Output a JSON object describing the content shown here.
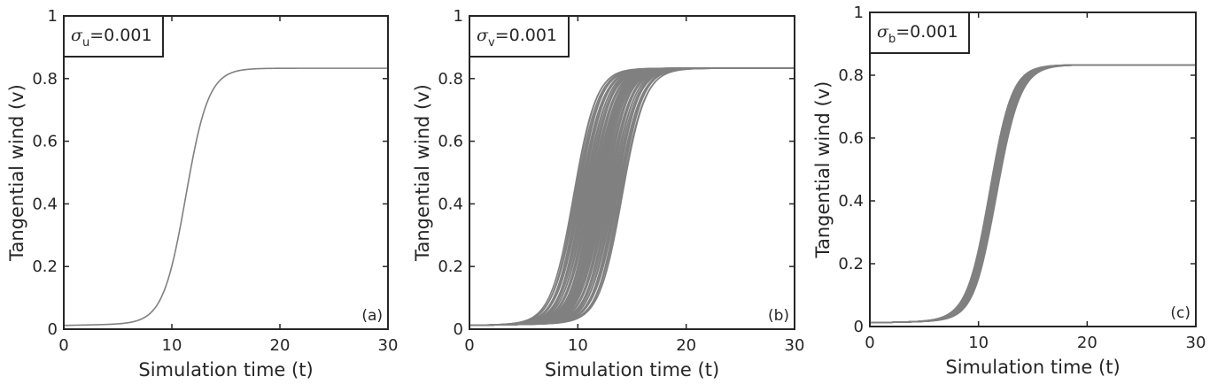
{
  "chart_data": [
    {
      "type": "line",
      "panel_tag": "(a)",
      "sigma_symbol": "σ",
      "sigma_subscript": "u",
      "sigma_value": "=0.001",
      "xlabel": "Simulation time (t)",
      "ylabel": "Tangential wind (v)",
      "xlim": [
        0,
        30
      ],
      "ylim": [
        0,
        1
      ],
      "xticks": [
        "0",
        "10",
        "20",
        "30"
      ],
      "yticks": [
        "0",
        "0.2",
        "0.4",
        "0.6",
        "0.8",
        "1"
      ],
      "line_color": "#808080",
      "ensemble": {
        "count": 1,
        "v_plateau": 0.833,
        "v_start": 0.012,
        "midpoint_range": [
          11.3,
          11.3
        ],
        "steepness": 0.95
      }
    },
    {
      "type": "line",
      "panel_tag": "(b)",
      "sigma_symbol": "σ",
      "sigma_subscript": "v",
      "sigma_value": "=0.001",
      "xlabel": "Simulation time (t)",
      "ylabel": "Tangential wind (v)",
      "xlim": [
        0,
        30
      ],
      "ylim": [
        0,
        1
      ],
      "xticks": [
        "0",
        "10",
        "20",
        "30"
      ],
      "yticks": [
        "0",
        "0.2",
        "0.4",
        "0.6",
        "0.8",
        "1"
      ],
      "line_color": "#808080",
      "ensemble": {
        "count": 60,
        "v_plateau": 0.833,
        "v_start": 0.012,
        "midpoint_range": [
          9.6,
          14.1
        ],
        "steepness": 0.95
      }
    },
    {
      "type": "line",
      "panel_tag": "(c)",
      "sigma_symbol": "σ",
      "sigma_subscript": "b",
      "sigma_value": "=0.001",
      "xlabel": "Simulation time (t)",
      "ylabel": "Tangential wind (v)",
      "xlim": [
        0,
        30
      ],
      "ylim": [
        0,
        1
      ],
      "xticks": [
        "0",
        "10",
        "20",
        "30"
      ],
      "yticks": [
        "0",
        "0.2",
        "0.4",
        "0.6",
        "0.8",
        "1"
      ],
      "line_color": "#808080",
      "ensemble": {
        "count": 30,
        "v_plateau": 0.833,
        "v_start": 0.012,
        "midpoint_range": [
          11.0,
          11.7
        ],
        "steepness": 0.95
      }
    }
  ]
}
